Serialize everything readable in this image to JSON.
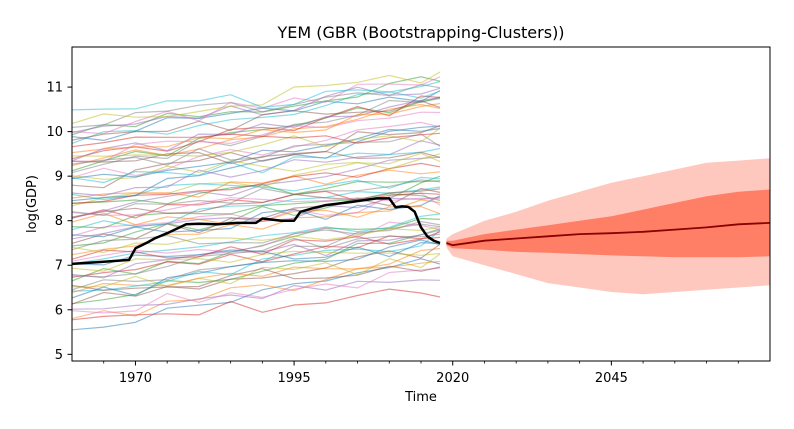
{
  "chart_data": {
    "type": "line",
    "title": "YEM (GBR (Bootstrapping-Clusters))",
    "xlabel": "Time",
    "ylabel": "log(GDP)",
    "xlim": [
      1960,
      2070
    ],
    "ylim": [
      4.85,
      11.9
    ],
    "xticks": [
      1970,
      1995,
      2020,
      2045
    ],
    "xticks_minor": [
      1965,
      1975,
      1980,
      1985,
      1990,
      2000,
      2005,
      2010,
      2015,
      2025,
      2030,
      2035,
      2040,
      2050,
      2055,
      2060,
      2065
    ],
    "yticks": [
      5,
      6,
      7,
      8,
      9,
      10,
      11
    ],
    "grid": false,
    "legend": "none",
    "history_range": [
      1960,
      2018
    ],
    "forecast_range": [
      2019,
      2070
    ],
    "colors": {
      "target": "#000000",
      "median": "#8b0000",
      "inner_band": "#ff7f66",
      "outer_band": "#ffc8be",
      "donor_palette": [
        "#1f77b4",
        "#ff7f0e",
        "#2ca02c",
        "#d62728",
        "#9467bd",
        "#8c564b",
        "#e377c2",
        "#7f7f7f",
        "#bcbd22",
        "#17becf"
      ]
    },
    "target_series": {
      "x": [
        1960,
        1965,
        1969,
        1970,
        1971,
        1972,
        1973,
        1975,
        1978,
        1980,
        1983,
        1986,
        1989,
        1990,
        1993,
        1995,
        1996,
        1998,
        2000,
        2004,
        2008,
        2010,
        2011,
        2012,
        2013,
        2014,
        2015,
        2016,
        2017,
        2018
      ],
      "y": [
        7.03,
        7.08,
        7.12,
        7.38,
        7.45,
        7.52,
        7.6,
        7.72,
        7.92,
        7.93,
        7.92,
        7.95,
        7.95,
        8.05,
        8.0,
        8.0,
        8.2,
        8.28,
        8.35,
        8.42,
        8.5,
        8.5,
        8.3,
        8.32,
        8.31,
        8.2,
        7.85,
        7.65,
        7.55,
        7.5
      ]
    },
    "forecast": {
      "x": [
        2019,
        2020,
        2025,
        2030,
        2035,
        2040,
        2045,
        2050,
        2055,
        2060,
        2065,
        2070
      ],
      "median": [
        7.5,
        7.45,
        7.55,
        7.6,
        7.65,
        7.7,
        7.72,
        7.75,
        7.8,
        7.85,
        7.92,
        7.95
      ],
      "inner_lower": [
        7.45,
        7.38,
        7.35,
        7.3,
        7.28,
        7.25,
        7.22,
        7.2,
        7.18,
        7.18,
        7.18,
        7.2
      ],
      "inner_upper": [
        7.55,
        7.55,
        7.7,
        7.8,
        7.9,
        8.0,
        8.1,
        8.25,
        8.4,
        8.55,
        8.65,
        8.7
      ],
      "outer_lower": [
        7.4,
        7.2,
        7.0,
        6.8,
        6.6,
        6.5,
        6.4,
        6.35,
        6.4,
        6.45,
        6.5,
        6.55
      ],
      "outer_upper": [
        7.6,
        7.7,
        8.0,
        8.2,
        8.45,
        8.65,
        8.85,
        9.0,
        9.15,
        9.3,
        9.35,
        9.4
      ]
    },
    "donor_series": {
      "x": [
        1960,
        1965,
        1970,
        1975,
        1980,
        1985,
        1990,
        1995,
        2000,
        2005,
        2010,
        2015,
        2018
      ],
      "count": 70,
      "start_min": 5.8,
      "start_max": 10.3
    }
  }
}
